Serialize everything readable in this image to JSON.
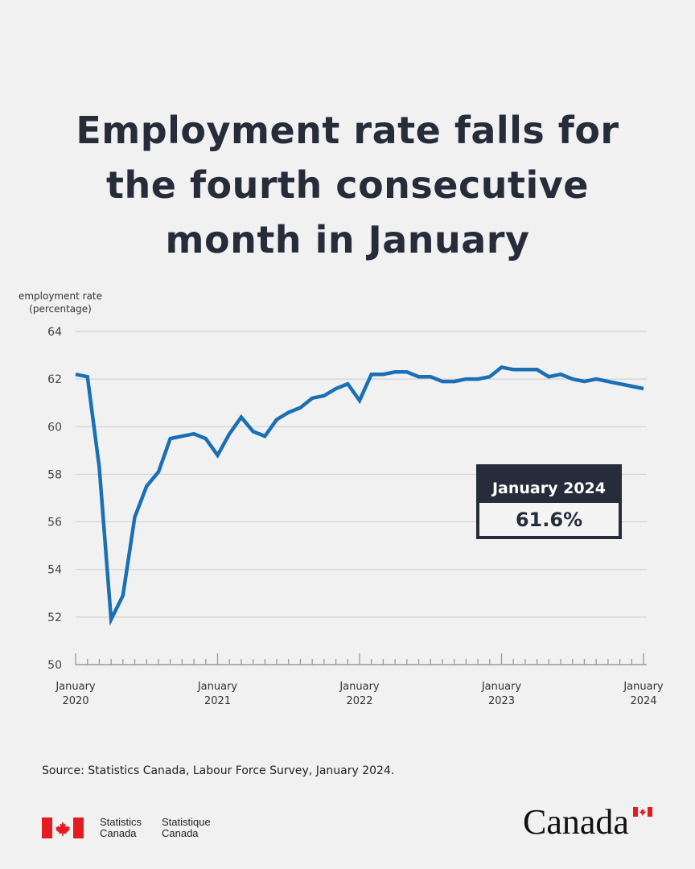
{
  "title": {
    "lines": [
      "Employment rate falls for",
      "the fourth consecutive",
      "month in January"
    ]
  },
  "callout": {
    "label": "January 2024",
    "value": "61.6%"
  },
  "source": "Source: Statistics Canada, Labour Force Survey, January 2024.",
  "footer": {
    "signature_en": [
      "Statistics",
      "Canada"
    ],
    "signature_fr": [
      "Statistique",
      "Canada"
    ],
    "wordmark": "Canada",
    "flag_color": "#e31b23"
  },
  "colors": {
    "line": "#1a6fb5",
    "title": "#262c3a",
    "grid": "#d4d4d4",
    "background": "#f1f1f1"
  },
  "chart_data": {
    "type": "line",
    "title": "Employment rate falls for the fourth consecutive month in January",
    "ylabel_lines": [
      "employment rate",
      "(percentage)"
    ],
    "xlabel": "",
    "ylim": [
      50,
      64
    ],
    "yticks": [
      "64",
      "62",
      "60",
      "58",
      "56",
      "54",
      "52",
      "50"
    ],
    "ytick_values": [
      64,
      62,
      60,
      58,
      56,
      54,
      52,
      50
    ],
    "grid": true,
    "xticks": [
      {
        "month_index": 0,
        "line1": "January",
        "line2": "2020"
      },
      {
        "month_index": 12,
        "line1": "January",
        "line2": "2021"
      },
      {
        "month_index": 24,
        "line1": "January",
        "line2": "2022"
      },
      {
        "month_index": 36,
        "line1": "January",
        "line2": "2023"
      },
      {
        "month_index": 48,
        "line1": "January",
        "line2": "2024"
      }
    ],
    "series": [
      {
        "name": "employment rate",
        "start": "January 2020",
        "frequency": "monthly",
        "values": [
          62.2,
          62.1,
          58.3,
          51.9,
          52.9,
          56.2,
          57.5,
          58.1,
          59.5,
          59.6,
          59.7,
          59.5,
          58.8,
          59.7,
          60.4,
          59.8,
          59.6,
          60.3,
          60.6,
          60.8,
          61.2,
          61.3,
          61.6,
          61.8,
          61.1,
          62.2,
          62.2,
          62.3,
          62.3,
          62.1,
          62.1,
          61.9,
          61.9,
          62.0,
          62.0,
          62.1,
          62.5,
          62.4,
          62.4,
          62.4,
          62.1,
          62.2,
          62.0,
          61.9,
          62.0,
          61.9,
          61.8,
          61.7,
          61.6
        ]
      }
    ]
  }
}
